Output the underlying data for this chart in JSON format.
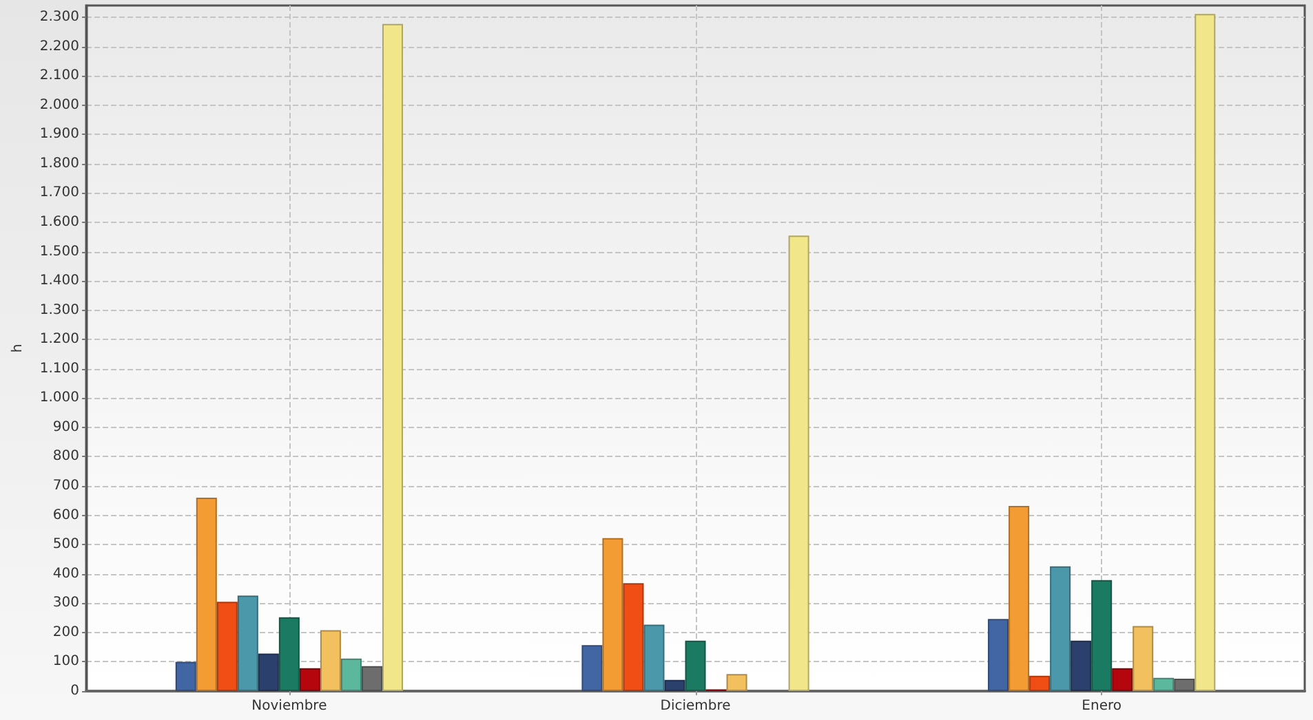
{
  "chart_data": {
    "type": "bar",
    "ylabel": "h",
    "categories": [
      "Noviembre",
      "Diciembre",
      "Enero"
    ],
    "series": [
      {
        "color": "#4266a4",
        "values": [
          100,
          157,
          246
        ]
      },
      {
        "color": "#f39c33",
        "values": [
          660,
          522,
          632
        ]
      },
      {
        "color": "#f04e14",
        "values": [
          305,
          368,
          52
        ]
      },
      {
        "color": "#4b98ab",
        "values": [
          326,
          227,
          426
        ]
      },
      {
        "color": "#2b406c",
        "values": [
          128,
          38,
          172
        ]
      },
      {
        "color": "#1b7a62",
        "values": [
          252,
          172,
          379
        ]
      },
      {
        "color": "#b5060e",
        "values": [
          78,
          6,
          78
        ]
      },
      {
        "color": "#f2c05e",
        "values": [
          208,
          58,
          222
        ]
      },
      {
        "color": "#5cb89d",
        "values": [
          111,
          null,
          45
        ]
      },
      {
        "color": "#6d6d6d",
        "values": [
          85,
          null,
          42
        ]
      },
      {
        "color": "#f2e68a",
        "values": [
          2277,
          1555,
          2311
        ]
      }
    ],
    "ylim": [
      0,
      2340
    ],
    "yticks": [
      0,
      100,
      200,
      300,
      400,
      500,
      600,
      700,
      800,
      900,
      {
        "value": 1000,
        "label": "1.000"
      },
      {
        "value": 1100,
        "label": "1.100"
      },
      {
        "value": 1200,
        "label": "1.200"
      },
      {
        "value": 1300,
        "label": "1.300"
      },
      {
        "value": 1400,
        "label": "1.400"
      },
      {
        "value": 1500,
        "label": "1.500"
      },
      {
        "value": 1600,
        "label": "1.600"
      },
      {
        "value": 1700,
        "label": "1.700"
      },
      {
        "value": 1800,
        "label": "1.800"
      },
      {
        "value": 1900,
        "label": "1.900"
      },
      {
        "value": 2000,
        "label": "2.000"
      },
      {
        "value": 2100,
        "label": "2.100"
      },
      {
        "value": 2200,
        "label": "2.200"
      },
      {
        "value": 2300,
        "label": "2.300"
      }
    ],
    "grid": true
  }
}
